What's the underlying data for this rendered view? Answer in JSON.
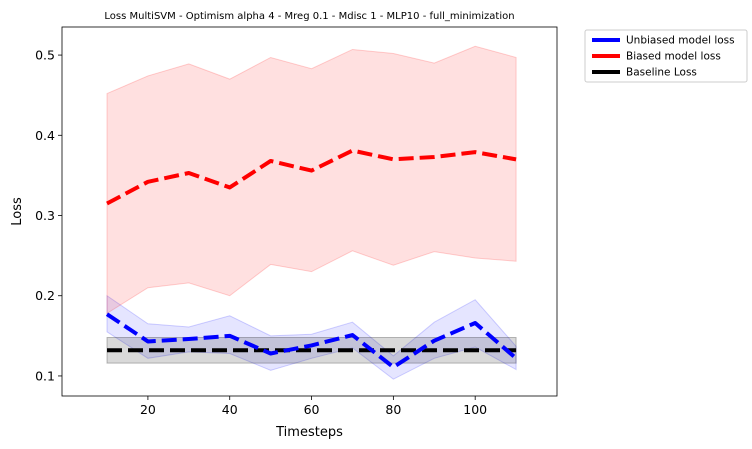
{
  "chart_data": {
    "type": "line",
    "title": "Loss MultiSVM - Optimism alpha 4 - Mreg 0.1 - Mdisc 1 - MLP10 - full_minimization",
    "xlabel": "Timesteps",
    "ylabel": "Loss",
    "xlim": [
      -1,
      120
    ],
    "ylim": [
      0.075,
      0.535
    ],
    "xticks": [
      20,
      40,
      60,
      80,
      100
    ],
    "yticks": [
      0.1,
      0.2,
      0.3,
      0.4,
      0.5
    ],
    "xtick_labels": [
      "20",
      "40",
      "60",
      "80",
      "100"
    ],
    "ytick_labels": [
      "0.1",
      "0.2",
      "0.3",
      "0.4",
      "0.5"
    ],
    "legend_position": "outside-top-right",
    "x": [
      10,
      20,
      30,
      40,
      50,
      60,
      70,
      80,
      90,
      100,
      110
    ],
    "series": [
      {
        "name": "Unbiased model loss",
        "color": "#0000ff",
        "values": [
          0.177,
          0.143,
          0.146,
          0.15,
          0.128,
          0.138,
          0.151,
          0.111,
          0.144,
          0.166,
          0.122
        ],
        "upper": [
          0.2,
          0.165,
          0.161,
          0.175,
          0.15,
          0.152,
          0.167,
          0.125,
          0.167,
          0.195,
          0.137
        ],
        "lower": [
          0.155,
          0.122,
          0.13,
          0.128,
          0.107,
          0.122,
          0.135,
          0.096,
          0.122,
          0.136,
          0.108
        ]
      },
      {
        "name": "Biased model loss",
        "color": "#ff0000",
        "values": [
          0.315,
          0.342,
          0.353,
          0.335,
          0.368,
          0.356,
          0.381,
          0.37,
          0.373,
          0.379,
          0.37
        ],
        "upper": [
          0.452,
          0.474,
          0.489,
          0.47,
          0.497,
          0.483,
          0.507,
          0.502,
          0.49,
          0.511,
          0.497
        ],
        "lower": [
          0.178,
          0.21,
          0.216,
          0.2,
          0.239,
          0.23,
          0.256,
          0.238,
          0.255,
          0.247,
          0.243
        ]
      },
      {
        "name": "Baseline Loss",
        "color": "#000000",
        "values": [
          0.132,
          0.132,
          0.132,
          0.132,
          0.132,
          0.132,
          0.132,
          0.132,
          0.132,
          0.132,
          0.132
        ],
        "upper": [
          0.148,
          0.148,
          0.148,
          0.148,
          0.148,
          0.148,
          0.148,
          0.148,
          0.148,
          0.148,
          0.148
        ],
        "lower": [
          0.116,
          0.116,
          0.116,
          0.116,
          0.116,
          0.116,
          0.116,
          0.116,
          0.116,
          0.116,
          0.116
        ]
      }
    ]
  }
}
